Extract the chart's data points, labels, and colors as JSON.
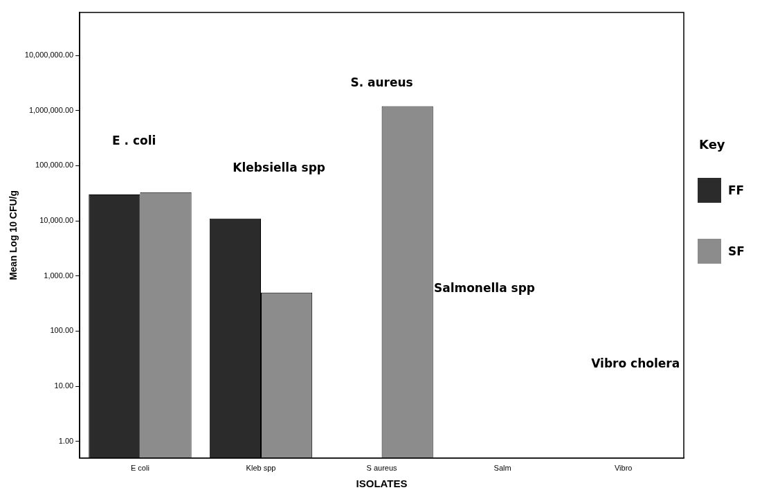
{
  "chart_data": {
    "type": "bar",
    "xlabel": "ISOLATES",
    "ylabel": "Mean Log 10 CFU/g",
    "legend_title": "Key",
    "legend": "right",
    "log": true,
    "grid": false,
    "categories": [
      "E coli",
      "Kleb spp",
      "S aureus",
      "Salm",
      "Vibro"
    ],
    "series": [
      {
        "name": "FF",
        "color": "#2b2b2b",
        "values": [
          30000,
          11000,
          null,
          null,
          null
        ]
      },
      {
        "name": "SF",
        "color": "#8c8c8c",
        "values": [
          33000,
          500,
          1200000,
          null,
          null
        ]
      }
    ],
    "ylim": [
      0.5,
      60000000
    ],
    "yticks": [
      {
        "value": 1,
        "label": "1.00"
      },
      {
        "value": 10,
        "label": "10.00"
      },
      {
        "value": 100,
        "label": "100.00"
      },
      {
        "value": 1000,
        "label": "1,000.00"
      },
      {
        "value": 10000,
        "label": "10,000.00"
      },
      {
        "value": 100000,
        "label": "100,000.00"
      },
      {
        "value": 1000000,
        "label": "1,000,000.00"
      },
      {
        "value": 10000000,
        "label": "10,000,000.00"
      }
    ],
    "annotations": [
      "E . coli",
      "Klebsiella spp",
      "S. aureus",
      "Salmonella spp",
      "Vibro cholera"
    ]
  }
}
